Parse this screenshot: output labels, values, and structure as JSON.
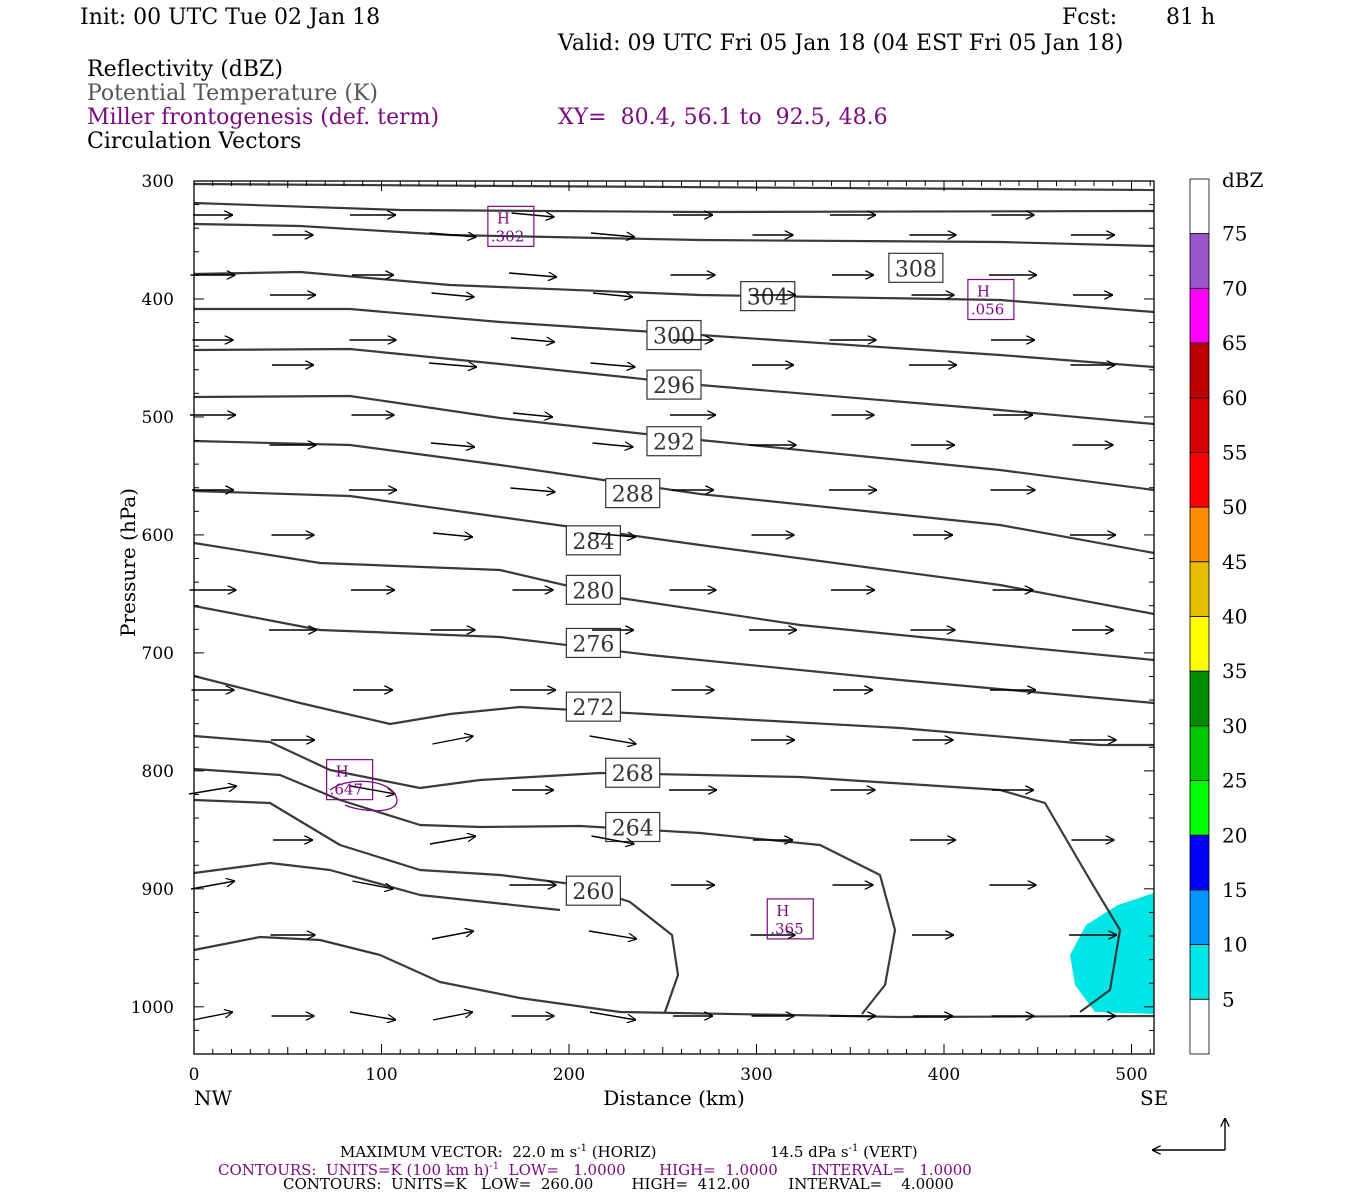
{
  "header": {
    "init": "Init: 00 UTC Tue 02 Jan 18",
    "fcst_label": "Fcst:",
    "fcst_value": "81 h",
    "valid": "Valid: 09 UTC Fri 05 Jan 18 (04 EST Fri 05 Jan 18)",
    "legend_lines": [
      {
        "text": "Reflectivity (dBZ)",
        "color": "#000000"
      },
      {
        "text": "Potential Temperature (K)",
        "color": "#555555"
      },
      {
        "text": "Miller frontogenesis (def. term)",
        "color": "#7a0a80"
      },
      {
        "text": "Circulation Vectors",
        "color": "#000000"
      }
    ],
    "xy": "XY=  80.4, 56.1 to  92.5, 48.6"
  },
  "chart_data": {
    "type": "cross-section",
    "xlabel": "Distance (km)",
    "ylabel": "Pressure (hPa)",
    "x_range": [
      0,
      512
    ],
    "y_range": [
      1040,
      300
    ],
    "x_ticks": [
      0,
      100,
      200,
      300,
      400,
      500
    ],
    "y_ticks": [
      300,
      400,
      500,
      600,
      700,
      800,
      900,
      1000
    ],
    "x_end_labels": {
      "left": "NW",
      "right": "SE"
    },
    "colorbar": {
      "title": "dBZ",
      "labels": [
        "5",
        "10",
        "15",
        "20",
        "25",
        "30",
        "35",
        "40",
        "45",
        "50",
        "55",
        "60",
        "65",
        "70",
        "75"
      ],
      "colors": [
        "#ffffff",
        "#00e6e6",
        "#0096ff",
        "#0000ff",
        "#00ff00",
        "#00c800",
        "#008c00",
        "#ffff00",
        "#e6be00",
        "#ff8c00",
        "#ff0000",
        "#d60000",
        "#c00000",
        "#ff00ff",
        "#9955c9",
        "#ffffff"
      ]
    },
    "isentropes": [
      {
        "label": "308",
        "lx": 385,
        "lp": 374
      },
      {
        "label": "304",
        "lx": 306,
        "lp": 398
      },
      {
        "label": "300",
        "lx": 256,
        "lp": 431
      },
      {
        "label": "296",
        "lx": 256,
        "lp": 473
      },
      {
        "label": "292",
        "lx": 256,
        "lp": 521
      },
      {
        "label": "288",
        "lx": 234,
        "lp": 565
      },
      {
        "label": "284",
        "lx": 213,
        "lp": 605
      },
      {
        "label": "280",
        "lx": 213,
        "lp": 647
      },
      {
        "label": "276",
        "lx": 213,
        "lp": 692
      },
      {
        "label": "272",
        "lx": 213,
        "lp": 746
      },
      {
        "label": "268",
        "lx": 234,
        "lp": 802
      },
      {
        "label": "264",
        "lx": 234,
        "lp": 848
      },
      {
        "label": "260",
        "lx": 213,
        "lp": 902
      }
    ],
    "frontogenesis_maxima": [
      {
        "label": "H",
        "value": ".302",
        "x": 169,
        "p": 341
      },
      {
        "label": "H",
        "value": ".056",
        "x": 425,
        "p": 403
      },
      {
        "label": "H",
        "value": ".647",
        "x": 83,
        "p": 810
      },
      {
        "label": "H",
        "value": ".365",
        "x": 318,
        "p": 928
      }
    ],
    "reflectivity_region": {
      "dbz_range": "5-10",
      "color": "#00e6e6"
    }
  },
  "footer": {
    "max_vector": "MAXIMUM VECTOR:  22.0 m s",
    "max_vector_horiz": " (HORIZ)",
    "vert": "14.5 dPa s",
    "vert_tail": " (VERT)",
    "contours1": "CONTOURS:  UNITS=K (100 km h)",
    "contours1_tail": "  LOW=   1.0000       HIGH=  1.0000       INTERVAL=   1.0000",
    "contours2": "CONTOURS:  UNITS=K   LOW=  260.00        HIGH=  412.00        INTERVAL=    4.0000",
    "exp": "-1"
  }
}
